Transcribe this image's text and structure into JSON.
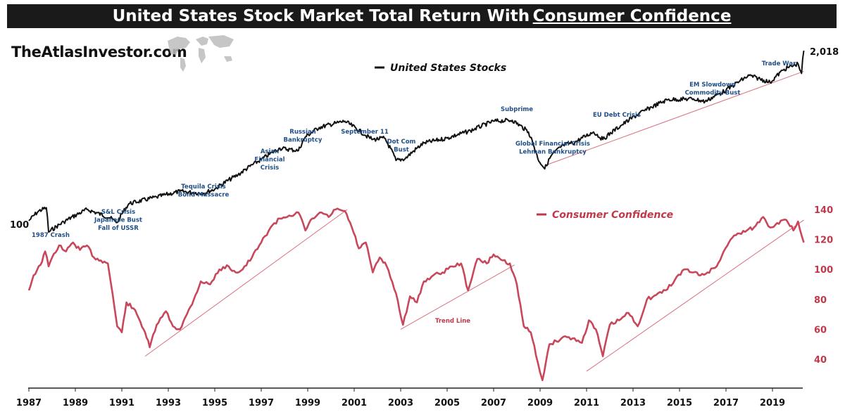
{
  "header": {
    "title_main": "United States Stock Market Total Return With",
    "title_underlined": "Consumer Confidence",
    "brand": "TheAtlasInvestor.com"
  },
  "chart_data": {
    "type": "line",
    "title": "United States Stock Market Total Return With Consumer Confidence",
    "x_ticks": [
      "1987",
      "1989",
      "1991",
      "1993",
      "1995",
      "1997",
      "1999",
      "2001",
      "2003",
      "2005",
      "2007",
      "2009",
      "2011",
      "2013",
      "2015",
      "2017",
      "2019"
    ],
    "xlim": [
      1987,
      2020.4
    ],
    "series": [
      {
        "name": "United States Stocks",
        "color": "#111111",
        "scale": "log",
        "start_label": "100",
        "end_label": "2,018",
        "points": [
          [
            1987.0,
            100
          ],
          [
            1987.4,
            118
          ],
          [
            1987.75,
            126
          ],
          [
            1987.85,
            82
          ],
          [
            1988.5,
            98
          ],
          [
            1989.5,
            122
          ],
          [
            1990.5,
            105
          ],
          [
            1990.8,
            97
          ],
          [
            1991.3,
            135
          ],
          [
            1992.5,
            152
          ],
          [
            1993.5,
            168
          ],
          [
            1994.5,
            162
          ],
          [
            1995.0,
            175
          ],
          [
            1996.0,
            225
          ],
          [
            1997.0,
            295
          ],
          [
            1997.8,
            360
          ],
          [
            1998.6,
            345
          ],
          [
            1998.9,
            440
          ],
          [
            1999.5,
            520
          ],
          [
            2000.2,
            560
          ],
          [
            2000.6,
            580
          ],
          [
            2001.5,
            450
          ],
          [
            2001.8,
            420
          ],
          [
            2002.3,
            430
          ],
          [
            2002.8,
            290
          ],
          [
            2003.2,
            300
          ],
          [
            2004.0,
            395
          ],
          [
            2005.0,
            430
          ],
          [
            2006.0,
            490
          ],
          [
            2007.0,
            580
          ],
          [
            2007.8,
            590
          ],
          [
            2008.5,
            480
          ],
          [
            2008.9,
            300
          ],
          [
            2009.2,
            250
          ],
          [
            2009.5,
            320
          ],
          [
            2010.0,
            380
          ],
          [
            2010.5,
            400
          ],
          [
            2011.3,
            480
          ],
          [
            2011.7,
            420
          ],
          [
            2012.5,
            540
          ],
          [
            2013.5,
            700
          ],
          [
            2014.5,
            850
          ],
          [
            2015.6,
            860
          ],
          [
            2016.1,
            820
          ],
          [
            2017.0,
            1000
          ],
          [
            2018.0,
            1300
          ],
          [
            2018.9,
            1150
          ],
          [
            2019.5,
            1450
          ],
          [
            2020.1,
            1600
          ],
          [
            2020.25,
            1350
          ],
          [
            2020.35,
            2018
          ]
        ]
      },
      {
        "name": "Consumer Confidence",
        "color": "#c0394b",
        "y_ticks": [
          40,
          60,
          80,
          100,
          120,
          140
        ],
        "ylim": [
          25,
          145
        ],
        "points": [
          [
            1987.0,
            86
          ],
          [
            1987.2,
            96
          ],
          [
            1987.5,
            103
          ],
          [
            1987.7,
            112
          ],
          [
            1987.85,
            102
          ],
          [
            1988.0,
            108
          ],
          [
            1988.3,
            116
          ],
          [
            1988.6,
            112
          ],
          [
            1988.9,
            118
          ],
          [
            1989.2,
            113
          ],
          [
            1989.5,
            116
          ],
          [
            1989.8,
            108
          ],
          [
            1990.1,
            106
          ],
          [
            1990.4,
            104
          ],
          [
            1990.6,
            84
          ],
          [
            1990.8,
            62
          ],
          [
            1991.0,
            58
          ],
          [
            1991.2,
            78
          ],
          [
            1991.5,
            74
          ],
          [
            1991.8,
            65
          ],
          [
            1992.0,
            58
          ],
          [
            1992.2,
            48
          ],
          [
            1992.5,
            63
          ],
          [
            1992.9,
            72
          ],
          [
            1993.2,
            62
          ],
          [
            1993.5,
            60
          ],
          [
            1993.8,
            70
          ],
          [
            1994.1,
            80
          ],
          [
            1994.4,
            92
          ],
          [
            1994.8,
            90
          ],
          [
            1995.2,
            100
          ],
          [
            1995.6,
            102
          ],
          [
            1995.9,
            98
          ],
          [
            1996.2,
            100
          ],
          [
            1996.6,
            108
          ],
          [
            1997.0,
            118
          ],
          [
            1997.4,
            128
          ],
          [
            1997.8,
            134
          ],
          [
            1998.2,
            136
          ],
          [
            1998.6,
            138
          ],
          [
            1998.9,
            126
          ],
          [
            1999.2,
            134
          ],
          [
            1999.6,
            138
          ],
          [
            1999.9,
            135
          ],
          [
            2000.2,
            140
          ],
          [
            2000.6,
            139
          ],
          [
            2000.9,
            128
          ],
          [
            2001.2,
            114
          ],
          [
            2001.5,
            118
          ],
          [
            2001.8,
            98
          ],
          [
            2002.1,
            108
          ],
          [
            2002.4,
            102
          ],
          [
            2002.8,
            84
          ],
          [
            2003.1,
            63
          ],
          [
            2003.4,
            82
          ],
          [
            2003.7,
            78
          ],
          [
            2004.0,
            92
          ],
          [
            2004.4,
            96
          ],
          [
            2004.8,
            98
          ],
          [
            2005.2,
            102
          ],
          [
            2005.6,
            104
          ],
          [
            2005.9,
            86
          ],
          [
            2006.3,
            107
          ],
          [
            2006.7,
            104
          ],
          [
            2007.0,
            110
          ],
          [
            2007.4,
            106
          ],
          [
            2007.7,
            104
          ],
          [
            2008.0,
            90
          ],
          [
            2008.3,
            62
          ],
          [
            2008.6,
            58
          ],
          [
            2008.9,
            38
          ],
          [
            2009.1,
            26
          ],
          [
            2009.4,
            50
          ],
          [
            2009.7,
            52
          ],
          [
            2010.0,
            55
          ],
          [
            2010.4,
            54
          ],
          [
            2010.8,
            51
          ],
          [
            2011.1,
            66
          ],
          [
            2011.4,
            60
          ],
          [
            2011.7,
            42
          ],
          [
            2012.0,
            63
          ],
          [
            2012.4,
            66
          ],
          [
            2012.8,
            71
          ],
          [
            2013.2,
            62
          ],
          [
            2013.6,
            80
          ],
          [
            2014.0,
            83
          ],
          [
            2014.4,
            86
          ],
          [
            2014.8,
            93
          ],
          [
            2015.2,
            100
          ],
          [
            2015.6,
            98
          ],
          [
            2015.9,
            96
          ],
          [
            2016.2,
            98
          ],
          [
            2016.6,
            102
          ],
          [
            2016.9,
            112
          ],
          [
            2017.2,
            120
          ],
          [
            2017.5,
            124
          ],
          [
            2017.9,
            126
          ],
          [
            2018.2,
            128
          ],
          [
            2018.6,
            135
          ],
          [
            2018.9,
            128
          ],
          [
            2019.2,
            131
          ],
          [
            2019.6,
            133
          ],
          [
            2019.9,
            126
          ],
          [
            2020.1,
            132
          ],
          [
            2020.35,
            118
          ]
        ]
      }
    ],
    "trend_lines": [
      {
        "label": "",
        "series": "United States Stocks",
        "from": [
          2009.2,
          265
        ],
        "to": [
          2020.35,
          1400
        ]
      },
      {
        "label": "",
        "series": "Consumer Confidence",
        "from": [
          1992.0,
          42
        ],
        "to": [
          2000.7,
          140
        ]
      },
      {
        "label": "Trend Line",
        "series": "Consumer Confidence",
        "from": [
          2003.0,
          60
        ],
        "to": [
          2007.9,
          103
        ]
      },
      {
        "label": "",
        "series": "Consumer Confidence",
        "from": [
          2011.0,
          32
        ],
        "to": [
          2020.35,
          133
        ]
      }
    ],
    "annotations": [
      {
        "lines": [
          "1987 Crash"
        ]
      },
      {
        "lines": [
          "S&L Crisis",
          "Japanese Bust",
          "Fall of USSR"
        ]
      },
      {
        "lines": [
          "Tequila Crisis",
          "Bond Massacre"
        ]
      },
      {
        "lines": [
          "Asian",
          "Financial",
          "Crisis"
        ]
      },
      {
        "lines": [
          "Russian",
          "Bankruptcy"
        ]
      },
      {
        "lines": [
          "September 11"
        ]
      },
      {
        "lines": [
          "Dot Com",
          "Bust"
        ]
      },
      {
        "lines": [
          "Subprime"
        ]
      },
      {
        "lines": [
          "Global Financial Crisis",
          "Lehman Bankruptcy"
        ]
      },
      {
        "lines": [
          "EU Debt Crisis"
        ]
      },
      {
        "lines": [
          "EM Slowdown",
          "Commodity Bust"
        ]
      },
      {
        "lines": [
          "Trade War"
        ]
      }
    ]
  }
}
